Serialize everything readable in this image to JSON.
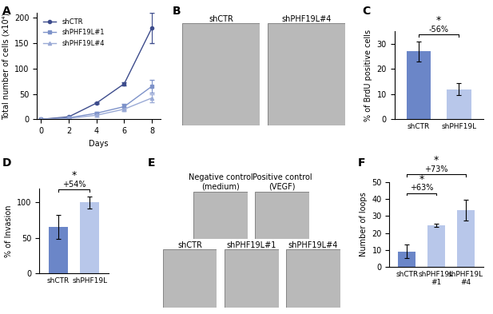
{
  "chart_data": [
    {
      "panel": "A",
      "type": "line",
      "x": [
        0,
        2,
        4,
        6,
        8
      ],
      "x_label": "Days",
      "y_label": "Total number of cells (x10⁴)",
      "xlim": [
        -0.3,
        8.6
      ],
      "xticks": [
        0,
        2,
        4,
        6,
        8
      ],
      "ylim": [
        0,
        210
      ],
      "yticks": [
        0,
        50,
        100,
        150,
        200
      ],
      "legend": "upper left",
      "series": [
        {
          "name": "shCTR",
          "color": "#3d4c8c",
          "marker": "circle",
          "values": [
            0,
            5,
            32,
            70,
            180
          ],
          "errors": [
            0,
            1,
            2,
            3,
            30
          ]
        },
        {
          "name": "shPHF19L#1",
          "color": "#7d92c9",
          "marker": "square",
          "values": [
            0,
            3,
            12,
            25,
            65
          ],
          "errors": [
            0,
            1,
            2,
            5,
            12
          ]
        },
        {
          "name": "shPHF19L#4",
          "color": "#9aaad6",
          "marker": "triangle",
          "values": [
            0,
            2,
            8,
            20,
            42
          ],
          "errors": [
            0,
            1,
            2,
            4,
            8
          ]
        }
      ]
    },
    {
      "panel": "B",
      "type": "image",
      "images": [
        [
          "shCTR",
          "shPHF19L#4"
        ]
      ]
    },
    {
      "panel": "C",
      "type": "bar",
      "categories": [
        "shCTR",
        "shPHF19L"
      ],
      "values": [
        27,
        12
      ],
      "errors": [
        4,
        2.5
      ],
      "colors": [
        "#6b86c8",
        "#b8c7ea"
      ],
      "y_label": "% of BrdU positive cells",
      "ylim": [
        0,
        35
      ],
      "yticks": [
        0,
        10,
        20,
        30
      ],
      "annotations": [
        {
          "between": [
            "shCTR",
            "shPHF19L"
          ],
          "star": "*",
          "text": "-56%"
        }
      ]
    },
    {
      "panel": "D",
      "type": "bar",
      "categories": [
        "shCTR",
        "shPHF19L"
      ],
      "values": [
        65,
        100
      ],
      "errors": [
        17,
        9
      ],
      "colors": [
        "#6b86c8",
        "#b8c7ea"
      ],
      "y_label": "% of Invasion",
      "ylim": [
        0,
        120
      ],
      "yticks": [
        0,
        50,
        100
      ],
      "annotations": [
        {
          "between": [
            "shCTR",
            "shPHF19L"
          ],
          "star": "*",
          "text": "+54%"
        }
      ]
    },
    {
      "panel": "E",
      "type": "image",
      "images": [
        [
          "Negative control\n(medium)",
          "Positive control\n(VEGF)"
        ],
        [
          "shCTR",
          "shPHF19L#1",
          "shPHF19L#4"
        ]
      ]
    },
    {
      "panel": "F",
      "type": "bar",
      "categories": [
        "shCTR",
        "shPHF19L\n#1",
        "shPHF19L\n#4"
      ],
      "values": [
        9,
        24.5,
        33.5
      ],
      "errors": [
        4,
        0.8,
        6
      ],
      "colors": [
        "#6b86c8",
        "#b8c7ea",
        "#b8c7ea"
      ],
      "y_label": "Number of loops",
      "ylim": [
        0,
        50
      ],
      "yticks": [
        0,
        10,
        20,
        30,
        40,
        50
      ],
      "annotations": [
        {
          "between": [
            "shCTR",
            "shPHF19L\n#1"
          ],
          "star": "*",
          "text": "+63%"
        },
        {
          "between": [
            "shCTR",
            "shPHF19L\n#4"
          ],
          "star": "*",
          "text": "+73%"
        }
      ]
    }
  ]
}
